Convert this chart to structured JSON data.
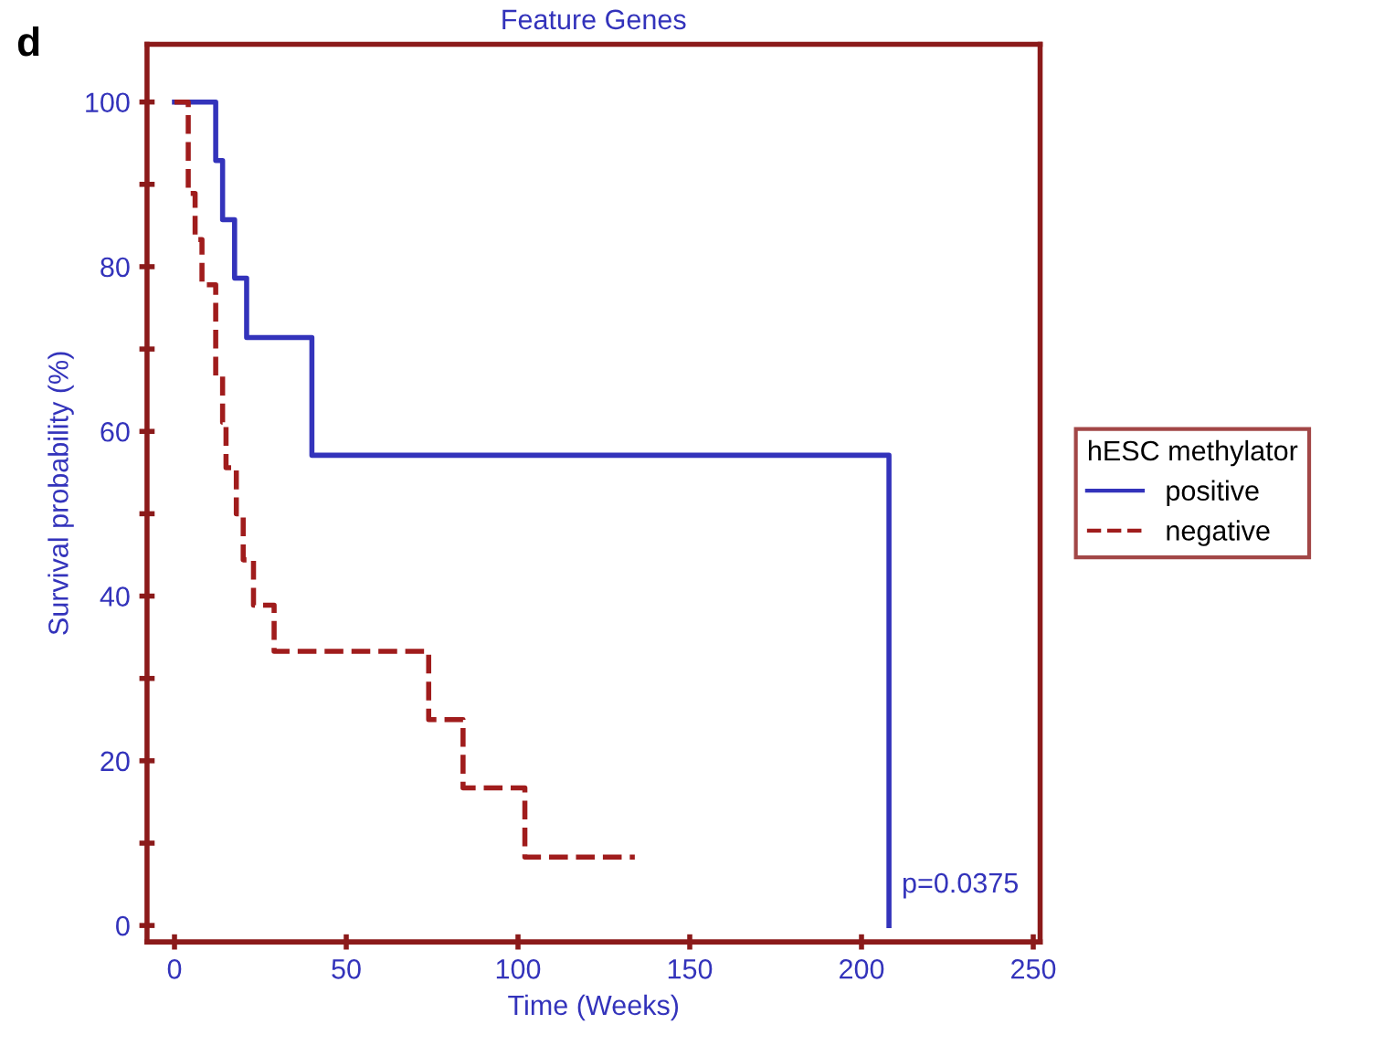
{
  "chart_data": {
    "type": "step",
    "title": "Feature Genes",
    "xlabel": "Time (Weeks)",
    "ylabel": "Survival probability (%)",
    "legend_title": "hESC methylator",
    "annotations": [
      "d",
      "p=0.0375"
    ],
    "series": [
      {
        "name": "positive",
        "color": "#3333bb",
        "line_style": "solid",
        "x": [
          0,
          12,
          14,
          17.5,
          21,
          40,
          208,
          208
        ],
        "values": [
          100,
          92.9,
          85.7,
          78.6,
          71.4,
          57.1,
          57.1,
          0
        ]
      },
      {
        "name": "negative",
        "color": "#a01c1c",
        "line_style": "dashed",
        "x": [
          0,
          4,
          6,
          8,
          12,
          14,
          15,
          18,
          20,
          23,
          29,
          74,
          84,
          102,
          134
        ],
        "values": [
          100,
          88.9,
          83.3,
          77.8,
          66.7,
          61.1,
          55.6,
          50,
          44.4,
          38.9,
          33.3,
          25,
          16.7,
          8.3,
          8.3
        ]
      }
    ],
    "xlim": [
      -8,
      252
    ],
    "ylim": [
      -2,
      107
    ],
    "xticks": [
      0,
      50,
      100,
      150,
      200,
      250
    ],
    "yticks": [
      0,
      {
        "value": 10,
        "label": null
      },
      20,
      {
        "value": 30,
        "label": null
      },
      40,
      {
        "value": 50,
        "label": null
      },
      60,
      {
        "value": 70,
        "label": null
      },
      80,
      {
        "value": 90,
        "label": null
      },
      100
    ],
    "grid": false,
    "legend": "right"
  }
}
